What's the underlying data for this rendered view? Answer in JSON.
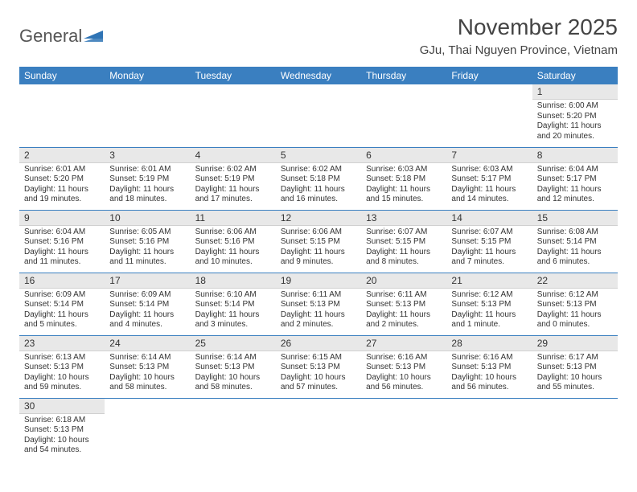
{
  "logo": {
    "brand": "General",
    "shape_color": "#2f74b5"
  },
  "title": "November 2025",
  "location": "GJu, Thai Nguyen Province, Vietnam",
  "theme": {
    "header_bg": "#3a7fc0",
    "header_fg": "#ffffff",
    "rule_color": "#3a7fc0",
    "daynum_bg": "#e8e8e8",
    "text_color": "#333333"
  },
  "typography": {
    "title_fontsize": 28,
    "location_fontsize": 15,
    "dayhead_fontsize": 12,
    "daynum_fontsize": 12,
    "body_fontsize": 10
  },
  "columns": [
    "Sunday",
    "Monday",
    "Tuesday",
    "Wednesday",
    "Thursday",
    "Friday",
    "Saturday"
  ],
  "first_weekday_index": 6,
  "days": [
    {
      "n": 1,
      "sunrise": "6:00 AM",
      "sunset": "5:20 PM",
      "daylight": "11 hours and 20 minutes."
    },
    {
      "n": 2,
      "sunrise": "6:01 AM",
      "sunset": "5:20 PM",
      "daylight": "11 hours and 19 minutes."
    },
    {
      "n": 3,
      "sunrise": "6:01 AM",
      "sunset": "5:19 PM",
      "daylight": "11 hours and 18 minutes."
    },
    {
      "n": 4,
      "sunrise": "6:02 AM",
      "sunset": "5:19 PM",
      "daylight": "11 hours and 17 minutes."
    },
    {
      "n": 5,
      "sunrise": "6:02 AM",
      "sunset": "5:18 PM",
      "daylight": "11 hours and 16 minutes."
    },
    {
      "n": 6,
      "sunrise": "6:03 AM",
      "sunset": "5:18 PM",
      "daylight": "11 hours and 15 minutes."
    },
    {
      "n": 7,
      "sunrise": "6:03 AM",
      "sunset": "5:17 PM",
      "daylight": "11 hours and 14 minutes."
    },
    {
      "n": 8,
      "sunrise": "6:04 AM",
      "sunset": "5:17 PM",
      "daylight": "11 hours and 12 minutes."
    },
    {
      "n": 9,
      "sunrise": "6:04 AM",
      "sunset": "5:16 PM",
      "daylight": "11 hours and 11 minutes."
    },
    {
      "n": 10,
      "sunrise": "6:05 AM",
      "sunset": "5:16 PM",
      "daylight": "11 hours and 11 minutes."
    },
    {
      "n": 11,
      "sunrise": "6:06 AM",
      "sunset": "5:16 PM",
      "daylight": "11 hours and 10 minutes."
    },
    {
      "n": 12,
      "sunrise": "6:06 AM",
      "sunset": "5:15 PM",
      "daylight": "11 hours and 9 minutes."
    },
    {
      "n": 13,
      "sunrise": "6:07 AM",
      "sunset": "5:15 PM",
      "daylight": "11 hours and 8 minutes."
    },
    {
      "n": 14,
      "sunrise": "6:07 AM",
      "sunset": "5:15 PM",
      "daylight": "11 hours and 7 minutes."
    },
    {
      "n": 15,
      "sunrise": "6:08 AM",
      "sunset": "5:14 PM",
      "daylight": "11 hours and 6 minutes."
    },
    {
      "n": 16,
      "sunrise": "6:09 AM",
      "sunset": "5:14 PM",
      "daylight": "11 hours and 5 minutes."
    },
    {
      "n": 17,
      "sunrise": "6:09 AM",
      "sunset": "5:14 PM",
      "daylight": "11 hours and 4 minutes."
    },
    {
      "n": 18,
      "sunrise": "6:10 AM",
      "sunset": "5:14 PM",
      "daylight": "11 hours and 3 minutes."
    },
    {
      "n": 19,
      "sunrise": "6:11 AM",
      "sunset": "5:13 PM",
      "daylight": "11 hours and 2 minutes."
    },
    {
      "n": 20,
      "sunrise": "6:11 AM",
      "sunset": "5:13 PM",
      "daylight": "11 hours and 2 minutes."
    },
    {
      "n": 21,
      "sunrise": "6:12 AM",
      "sunset": "5:13 PM",
      "daylight": "11 hours and 1 minute."
    },
    {
      "n": 22,
      "sunrise": "6:12 AM",
      "sunset": "5:13 PM",
      "daylight": "11 hours and 0 minutes."
    },
    {
      "n": 23,
      "sunrise": "6:13 AM",
      "sunset": "5:13 PM",
      "daylight": "10 hours and 59 minutes."
    },
    {
      "n": 24,
      "sunrise": "6:14 AM",
      "sunset": "5:13 PM",
      "daylight": "10 hours and 58 minutes."
    },
    {
      "n": 25,
      "sunrise": "6:14 AM",
      "sunset": "5:13 PM",
      "daylight": "10 hours and 58 minutes."
    },
    {
      "n": 26,
      "sunrise": "6:15 AM",
      "sunset": "5:13 PM",
      "daylight": "10 hours and 57 minutes."
    },
    {
      "n": 27,
      "sunrise": "6:16 AM",
      "sunset": "5:13 PM",
      "daylight": "10 hours and 56 minutes."
    },
    {
      "n": 28,
      "sunrise": "6:16 AM",
      "sunset": "5:13 PM",
      "daylight": "10 hours and 56 minutes."
    },
    {
      "n": 29,
      "sunrise": "6:17 AM",
      "sunset": "5:13 PM",
      "daylight": "10 hours and 55 minutes."
    },
    {
      "n": 30,
      "sunrise": "6:18 AM",
      "sunset": "5:13 PM",
      "daylight": "10 hours and 54 minutes."
    }
  ],
  "labels": {
    "sunrise": "Sunrise:",
    "sunset": "Sunset:",
    "daylight": "Daylight:"
  }
}
